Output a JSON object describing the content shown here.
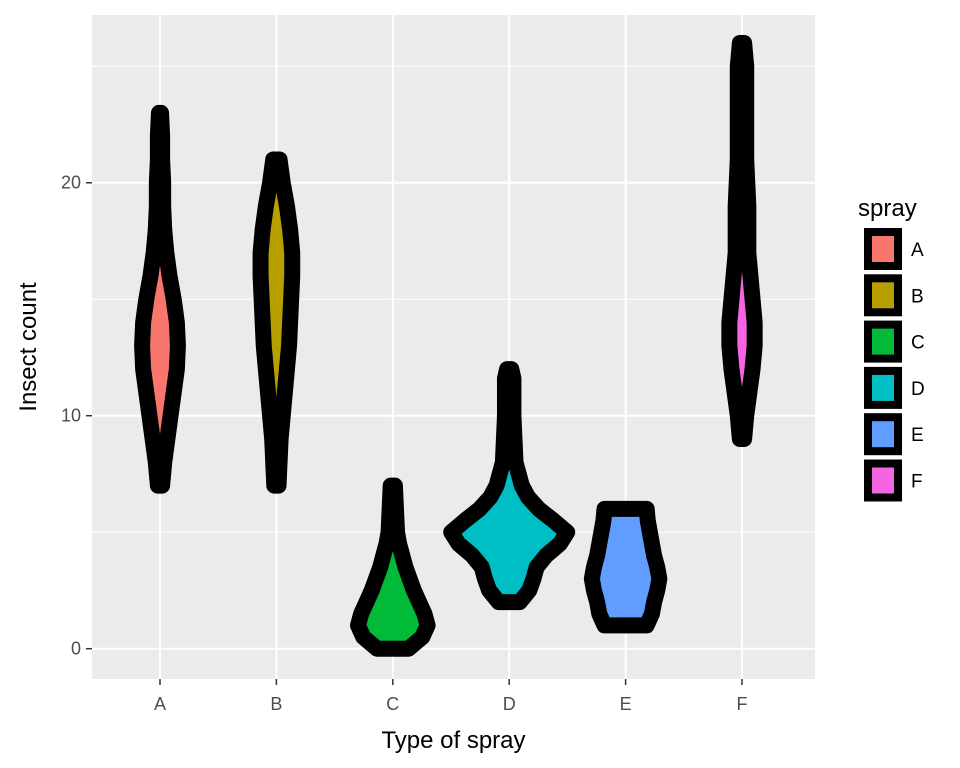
{
  "chart_data": {
    "type": "violin",
    "xlabel": "Type of spray",
    "ylabel": "Insect count",
    "categories": [
      "A",
      "B",
      "C",
      "D",
      "E",
      "F"
    ],
    "ylim": [
      -1.3,
      27.2
    ],
    "yticks": [
      0,
      10,
      20
    ],
    "grid": true,
    "legend": {
      "title": "spray",
      "placement": "right",
      "entries": [
        "A",
        "B",
        "C",
        "D",
        "E",
        "F"
      ]
    },
    "colors": {
      "A": "#F8766D",
      "B": "#B79F00",
      "C": "#00BA38",
      "D": "#00BFC4",
      "E": "#619CFF",
      "F": "#F564E3"
    },
    "outline_color": "#000000",
    "series": [
      {
        "category": "A",
        "min": 7,
        "max": 23,
        "profile": [
          [
            7,
            0.02
          ],
          [
            8,
            0.04
          ],
          [
            9,
            0.07
          ],
          [
            10,
            0.1
          ],
          [
            11,
            0.13
          ],
          [
            12,
            0.16
          ],
          [
            13,
            0.17
          ],
          [
            14,
            0.16
          ],
          [
            15,
            0.13
          ],
          [
            16,
            0.09
          ],
          [
            17,
            0.06
          ],
          [
            18,
            0.04
          ],
          [
            19,
            0.03
          ],
          [
            20,
            0.03
          ],
          [
            21,
            0.02
          ],
          [
            22,
            0.02
          ],
          [
            23,
            0.01
          ]
        ]
      },
      {
        "category": "B",
        "min": 7,
        "max": 21,
        "profile": [
          [
            7,
            0.02
          ],
          [
            8,
            0.03
          ],
          [
            9,
            0.04
          ],
          [
            10,
            0.06
          ],
          [
            11,
            0.08
          ],
          [
            12,
            0.1
          ],
          [
            13,
            0.12
          ],
          [
            14,
            0.13
          ],
          [
            15,
            0.14
          ],
          [
            16,
            0.15
          ],
          [
            17,
            0.15
          ],
          [
            18,
            0.13
          ],
          [
            19,
            0.1
          ],
          [
            20,
            0.06
          ],
          [
            21,
            0.03
          ]
        ]
      },
      {
        "category": "C",
        "min": 0,
        "max": 7,
        "profile": [
          [
            0,
            0.15
          ],
          [
            0.5,
            0.28
          ],
          [
            1,
            0.33
          ],
          [
            1.5,
            0.3
          ],
          [
            2,
            0.25
          ],
          [
            2.5,
            0.2
          ],
          [
            3,
            0.16
          ],
          [
            3.5,
            0.12
          ],
          [
            4,
            0.09
          ],
          [
            4.5,
            0.06
          ],
          [
            5,
            0.04
          ],
          [
            6,
            0.03
          ],
          [
            7,
            0.02
          ]
        ]
      },
      {
        "category": "D",
        "min": 2,
        "max": 12,
        "profile": [
          [
            2,
            0.1
          ],
          [
            2.5,
            0.19
          ],
          [
            3,
            0.23
          ],
          [
            3.5,
            0.26
          ],
          [
            4,
            0.35
          ],
          [
            4.5,
            0.48
          ],
          [
            5,
            0.55
          ],
          [
            5.5,
            0.42
          ],
          [
            6,
            0.28
          ],
          [
            6.5,
            0.18
          ],
          [
            7,
            0.12
          ],
          [
            8,
            0.06
          ],
          [
            9,
            0.05
          ],
          [
            10,
            0.04
          ],
          [
            11,
            0.04
          ],
          [
            11.6,
            0.04
          ],
          [
            12,
            0.02
          ]
        ]
      },
      {
        "category": "E",
        "min": 1,
        "max": 6,
        "profile": [
          [
            1,
            0.2
          ],
          [
            1.5,
            0.25
          ],
          [
            2,
            0.27
          ],
          [
            2.5,
            0.3
          ],
          [
            3,
            0.32
          ],
          [
            3.5,
            0.3
          ],
          [
            4,
            0.27
          ],
          [
            4.5,
            0.25
          ],
          [
            5,
            0.23
          ],
          [
            5.5,
            0.21
          ],
          [
            6,
            0.2
          ]
        ]
      },
      {
        "category": "F",
        "min": 9,
        "max": 26,
        "profile": [
          [
            9,
            0.02
          ],
          [
            10,
            0.04
          ],
          [
            11,
            0.07
          ],
          [
            12,
            0.1
          ],
          [
            13,
            0.12
          ],
          [
            14,
            0.12
          ],
          [
            15,
            0.1
          ],
          [
            16,
            0.08
          ],
          [
            17,
            0.06
          ],
          [
            18,
            0.06
          ],
          [
            19,
            0.06
          ],
          [
            20,
            0.05
          ],
          [
            21,
            0.04
          ],
          [
            22,
            0.04
          ],
          [
            23,
            0.04
          ],
          [
            24,
            0.04
          ],
          [
            25,
            0.04
          ],
          [
            26,
            0.02
          ]
        ]
      }
    ]
  }
}
